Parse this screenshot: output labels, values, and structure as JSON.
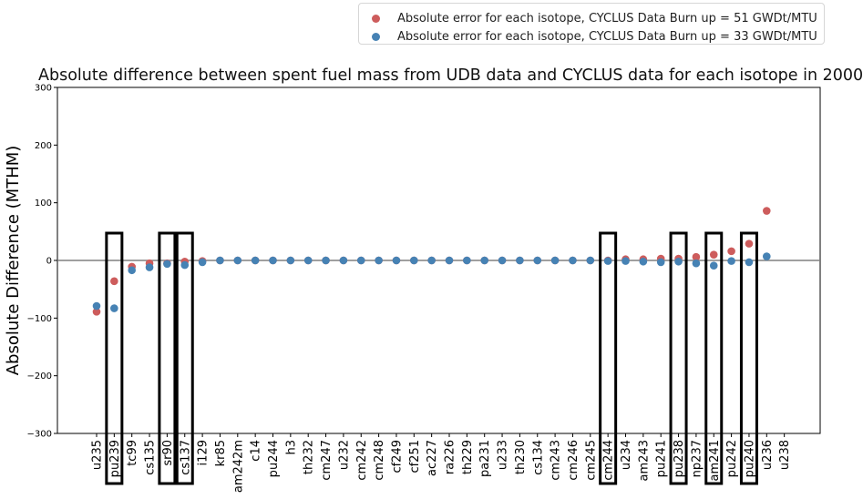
{
  "chart_data": {
    "type": "scatter",
    "title": "Absolute difference between spent fuel mass from UDB data and CYCLUS data for each isotope in 2000",
    "xlabel": "",
    "ylabel": "Absolute Difference (MTHM)",
    "ylim": [
      -300,
      300
    ],
    "yticks": [
      -300,
      -200,
      -100,
      0,
      100,
      200,
      300
    ],
    "ytick_labels": [
      "−300",
      "−200",
      "−100",
      "0",
      "100",
      "200",
      "300"
    ],
    "categories": [
      "u235",
      "pu239",
      "tc99",
      "cs135",
      "sr90",
      "cs137",
      "i129",
      "kr85",
      "am242m",
      "c14",
      "pu244",
      "h3",
      "th232",
      "cm247",
      "u232",
      "cm242",
      "cm248",
      "cf249",
      "cf251",
      "ac227",
      "ra226",
      "th229",
      "pa231",
      "u233",
      "th230",
      "cs134",
      "cm243",
      "cm246",
      "cm245",
      "cm244",
      "u234",
      "am243",
      "pu241",
      "pu238",
      "np237",
      "am241",
      "pu242",
      "pu240",
      "u236",
      "u238"
    ],
    "highlighted": [
      "pu239",
      "sr90",
      "cs137",
      "cm244",
      "pu238",
      "am241",
      "pu240"
    ],
    "grid": false,
    "zero_line": true,
    "legend_position": "top-right, above plot",
    "series": [
      {
        "name": "Absolute error for each isotope, CYCLUS Data Burn up = 51 GWDt/MTU",
        "color": "#cd5c5c",
        "values": [
          -89,
          -36,
          -11,
          -5,
          -5,
          -2,
          -1,
          0,
          0,
          0,
          0,
          0,
          0,
          0,
          0,
          0,
          0,
          0,
          0,
          0,
          0,
          0,
          0,
          0,
          0,
          0,
          0,
          0,
          0,
          0,
          2,
          2,
          3,
          3,
          6,
          10,
          16,
          29,
          86,
          null
        ]
      },
      {
        "name": "Absolute error for each isotope, CYCLUS Data Burn up = 33 GWDt/MTU",
        "color": "#4682b4",
        "values": [
          -79,
          -83,
          -17,
          -12,
          -6,
          -8,
          -3,
          0,
          0,
          0,
          0,
          0,
          0,
          0,
          0,
          0,
          0,
          0,
          0,
          0,
          0,
          0,
          0,
          0,
          0,
          0,
          0,
          0,
          0,
          -1,
          -1,
          -2,
          -3,
          -2,
          -5,
          -9,
          -1,
          -3,
          7,
          null
        ]
      }
    ]
  }
}
